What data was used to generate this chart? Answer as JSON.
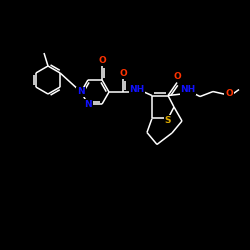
{
  "bg_color": "#000000",
  "bond_color": "#ffffff",
  "atom_colors": {
    "N": "#1111ff",
    "O": "#ff3300",
    "S": "#ddaa00",
    "C": "#ffffff"
  },
  "lw": 1.1,
  "fs": 6.5,
  "figsize": [
    2.5,
    2.5
  ],
  "dpi": 100
}
